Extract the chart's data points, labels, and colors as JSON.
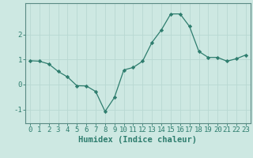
{
  "x": [
    0,
    1,
    2,
    3,
    4,
    5,
    6,
    7,
    8,
    9,
    10,
    11,
    12,
    13,
    14,
    15,
    16,
    17,
    18,
    19,
    20,
    21,
    22,
    23
  ],
  "y": [
    0.95,
    0.93,
    0.82,
    0.52,
    0.3,
    -0.05,
    -0.06,
    -0.28,
    -1.08,
    -0.52,
    0.58,
    0.68,
    0.93,
    1.68,
    2.18,
    2.82,
    2.82,
    2.32,
    1.32,
    1.08,
    1.08,
    0.93,
    1.03,
    1.18
  ],
  "line_color": "#2e7d6e",
  "marker": "D",
  "marker_size": 2.2,
  "bg_color": "#cde8e2",
  "grid_color": "#b8d8d2",
  "axis_color": "#2e7d6e",
  "spine_color": "#5a8a84",
  "xlabel": "Humidex (Indice chaleur)",
  "xlim": [
    -0.5,
    23.5
  ],
  "ylim": [
    -1.55,
    3.25
  ],
  "yticks": [
    -1,
    0,
    1,
    2
  ],
  "xticks": [
    0,
    1,
    2,
    3,
    4,
    5,
    6,
    7,
    8,
    9,
    10,
    11,
    12,
    13,
    14,
    15,
    16,
    17,
    18,
    19,
    20,
    21,
    22,
    23
  ],
  "xlabel_fontsize": 7.5,
  "tick_fontsize": 6.5
}
